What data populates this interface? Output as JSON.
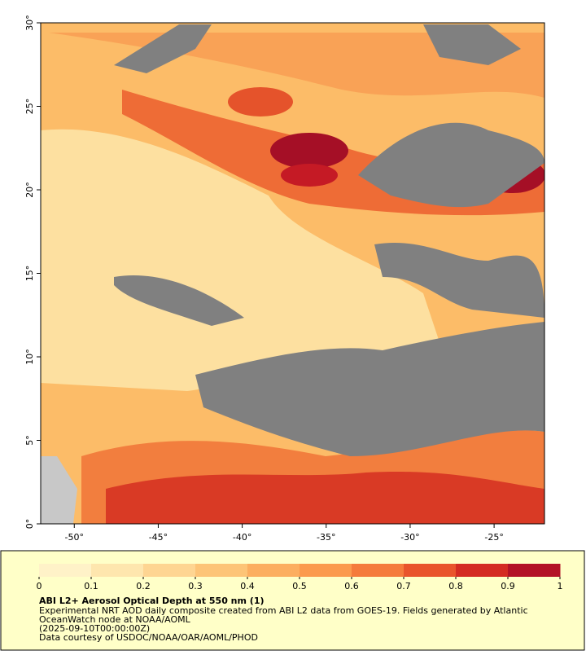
{
  "chart_data": {
    "type": "map",
    "xlim": [
      -52,
      -22
    ],
    "ylim": [
      0,
      30
    ],
    "xticks": [
      {
        "value": -50,
        "label": "-50°"
      },
      {
        "value": -45,
        "label": "-45°"
      },
      {
        "value": -40,
        "label": "-40°"
      },
      {
        "value": -35,
        "label": "-35°"
      },
      {
        "value": -30,
        "label": "-30°"
      },
      {
        "value": -25,
        "label": "-25°"
      }
    ],
    "yticks": [
      {
        "value": 0,
        "label": "0°"
      },
      {
        "value": 5,
        "label": "5°"
      },
      {
        "value": 10,
        "label": "10°"
      },
      {
        "value": 15,
        "label": "15°"
      },
      {
        "value": 20,
        "label": "20°"
      },
      {
        "value": 25,
        "label": "25°"
      },
      {
        "value": 30,
        "label": "30°"
      }
    ],
    "colorbar": {
      "lim": [
        0,
        1
      ],
      "ticks": [
        0,
        0.1,
        0.2,
        0.3,
        0.4,
        0.5,
        0.6,
        0.7,
        0.8,
        0.9,
        1
      ],
      "colors": [
        "#fff2c8",
        "#fee6ae",
        "#fed592",
        "#fdc477",
        "#fcae60",
        "#fb9a4e",
        "#f57b3c",
        "#e9542c",
        "#d42b22",
        "#b31226"
      ]
    },
    "title": "ABI L2+ Aerosol Optical Depth at 550 nm (1)",
    "description": [
      "Experimental NRT AOD daily composite created from ABI L2 data from GOES-19. Fields generated by Atlantic",
      "OceanWatch node at NOAA/AOML",
      "(2025-09-10T00:00:00Z)",
      "Data courtesy of USDOC/NOAA/OAR/AOML/PHOD"
    ]
  }
}
